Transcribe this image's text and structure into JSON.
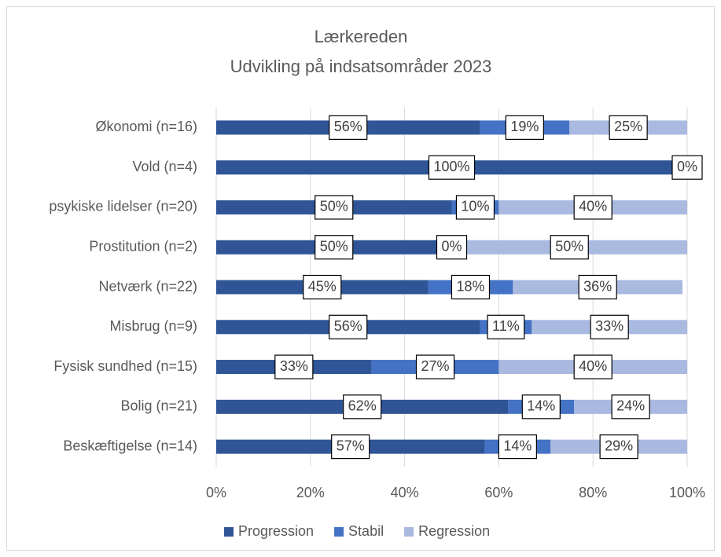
{
  "chart_data": {
    "type": "stacked-bar-horizontal",
    "title": "Lærkereden",
    "subtitle": "Udvikling på indsatsområder 2023",
    "categories": [
      "Økonomi (n=16)",
      "Vold (n=4)",
      "psykiske lidelser (n=20)",
      "Prostitution (n=2)",
      "Netværk (n=22)",
      "Misbrug (n=9)",
      "Fysisk sundhed (n=15)",
      "Bolig (n=21)",
      "Beskæftigelse (n=14)"
    ],
    "series": [
      {
        "name": "Progression",
        "color": "#2f5597",
        "values": [
          56,
          100,
          50,
          50,
          45,
          56,
          33,
          62,
          57
        ],
        "value_labels": [
          "56%",
          "100%",
          "50%",
          "50%",
          "45%",
          "56%",
          "33%",
          "62%",
          "57%"
        ]
      },
      {
        "name": "Stabil",
        "color": "#4472c4",
        "values": [
          19,
          0,
          10,
          0,
          18,
          11,
          27,
          14,
          14
        ],
        "value_labels": [
          "19%",
          null,
          "10%",
          "0%",
          "18%",
          "11%",
          "27%",
          "14%",
          "14%"
        ]
      },
      {
        "name": "Regression",
        "color": "#a9b9e0",
        "values": [
          25,
          0,
          40,
          50,
          36,
          33,
          40,
          24,
          29
        ],
        "value_labels": [
          "25%",
          "0%",
          "40%",
          "50%",
          "36%",
          "33%",
          "40%",
          "24%",
          "29%"
        ]
      }
    ],
    "xlim": [
      0,
      100
    ],
    "xticks": [
      {
        "value": 0,
        "label": "0%"
      },
      {
        "value": 20,
        "label": "20%"
      },
      {
        "value": 40,
        "label": "40%"
      },
      {
        "value": 60,
        "label": "60%"
      },
      {
        "value": 80,
        "label": "80%"
      },
      {
        "value": 100,
        "label": "100%"
      }
    ],
    "grid": true,
    "legend": "bottom"
  }
}
